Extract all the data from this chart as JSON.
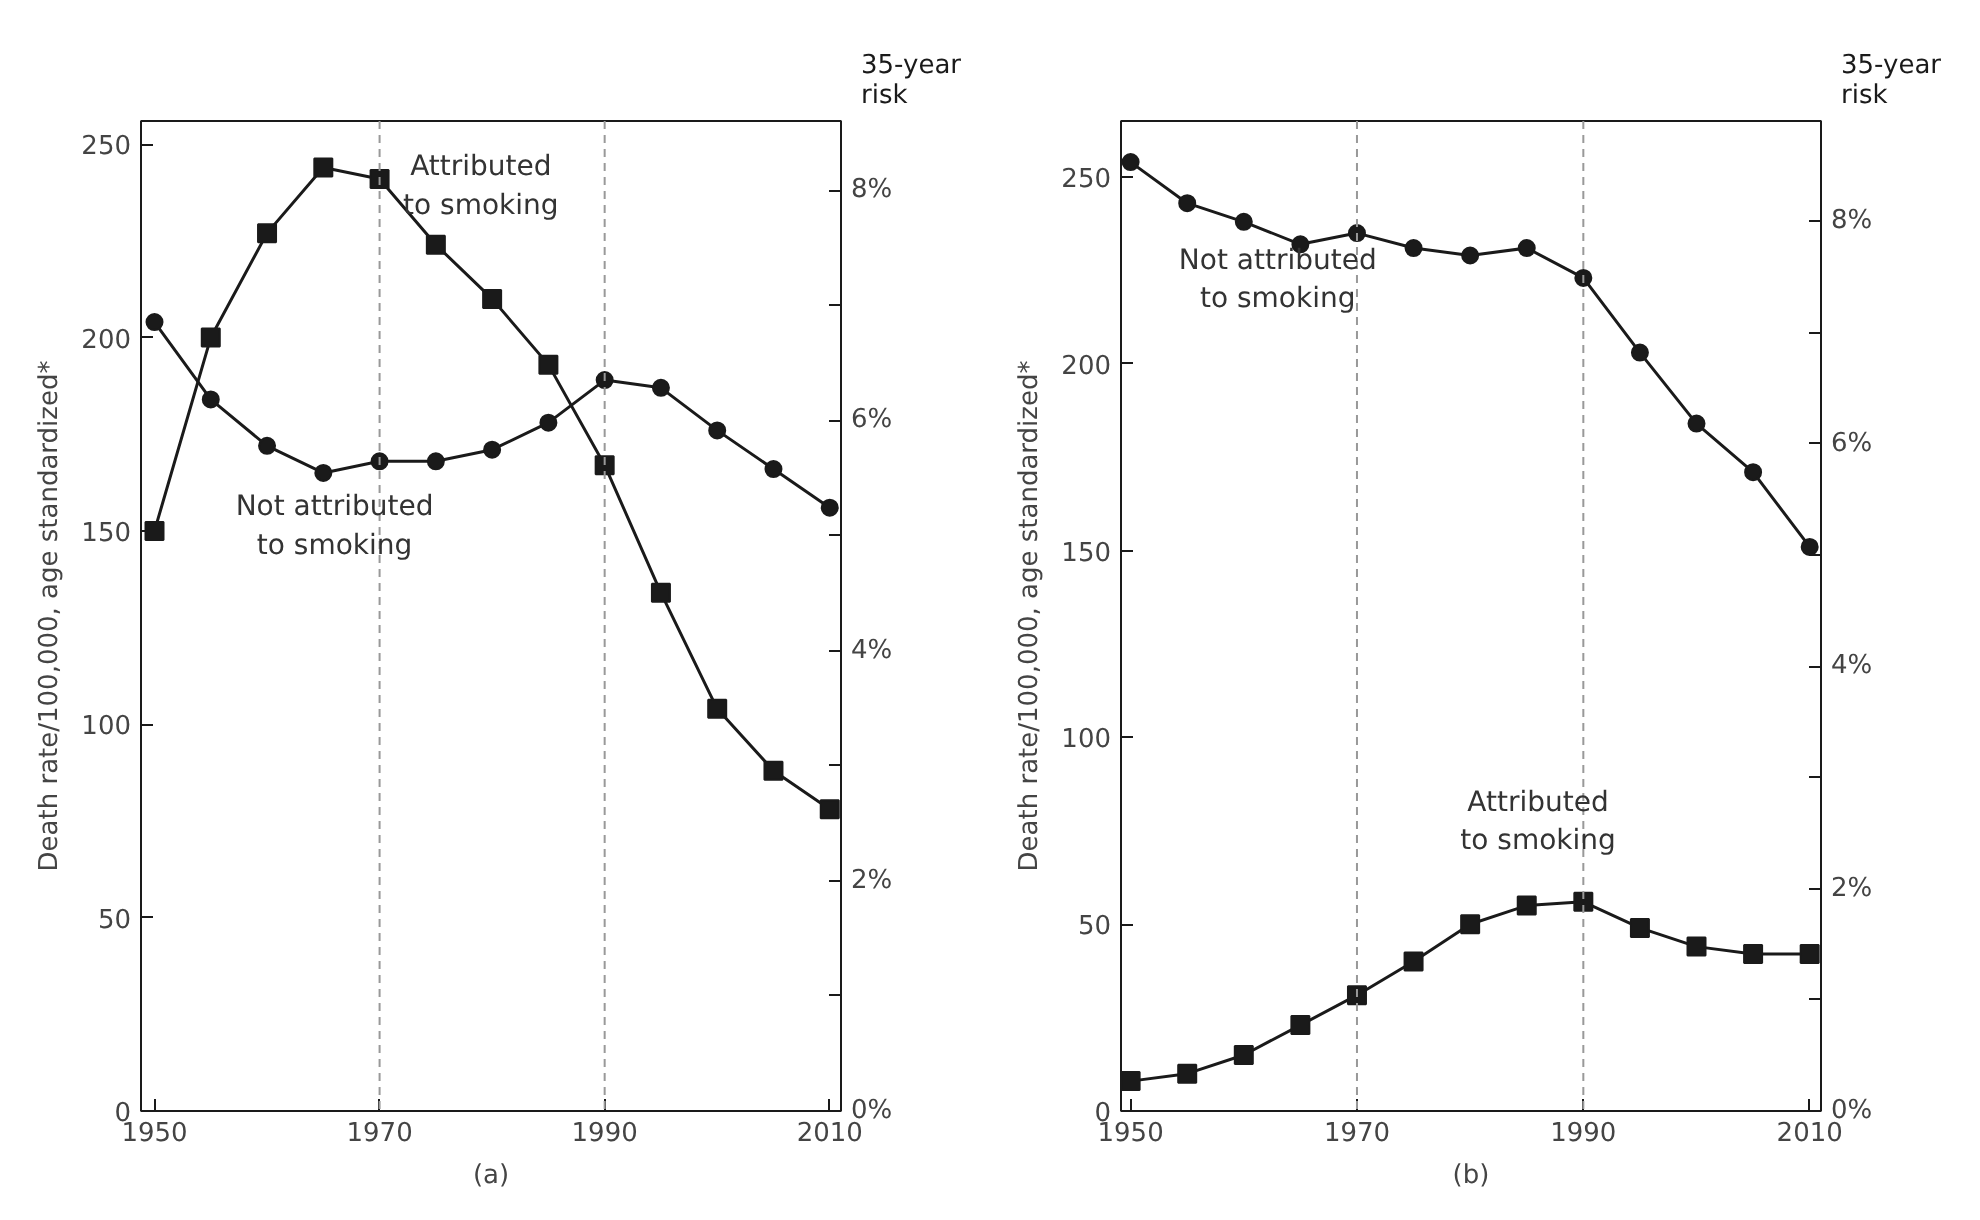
{
  "chart_data": [
    {
      "type": "line",
      "title": "(a)",
      "ylabel": "Death rate/100,000, age standardized*",
      "y2label": "35-year risk",
      "x": [
        1950,
        1955,
        1960,
        1965,
        1970,
        1975,
        1980,
        1985,
        1990,
        1995,
        2000,
        2005,
        2010
      ],
      "series": [
        {
          "name": "Attributed to smoking",
          "color": "#1a1a1a",
          "marker": "square",
          "values": [
            150,
            200,
            227,
            244,
            241,
            224,
            210,
            193,
            167,
            134,
            104,
            88,
            78
          ]
        },
        {
          "name": "Not attributed to smoking",
          "color": "#1a1a1a",
          "marker": "circle",
          "values": [
            204,
            184,
            172,
            165,
            168,
            168,
            171,
            178,
            189,
            187,
            176,
            166,
            156
          ]
        }
      ],
      "xlim": [
        1948.8,
        2011
      ],
      "xticks": [
        1950,
        1970,
        1990,
        2010
      ],
      "ylim": [
        0,
        256
      ],
      "yticks": [
        0,
        50,
        100,
        150,
        200,
        250
      ],
      "y2lim": [
        0,
        8.6
      ],
      "y2ticks": [
        {
          "value": 0,
          "label": "0%"
        },
        {
          "value": 1,
          "label": null
        },
        {
          "value": 2,
          "label": "2%"
        },
        {
          "value": 3,
          "label": null
        },
        {
          "value": 4,
          "label": "4%"
        },
        {
          "value": 5,
          "label": null
        },
        {
          "value": 6,
          "label": "6%"
        },
        {
          "value": 7,
          "label": null
        },
        {
          "value": 8,
          "label": "8%"
        }
      ],
      "ref_lines": [
        {
          "axis": "x",
          "value": 1970,
          "color": "#999999",
          "line_style": "dashed"
        },
        {
          "axis": "x",
          "value": 1990,
          "color": "#999999",
          "line_style": "dashed"
        }
      ],
      "grid": false,
      "line_style": "solid"
    },
    {
      "type": "line",
      "title": "(b)",
      "ylabel": "Death rate/100,000, age standardized*",
      "y2label": "35-year risk",
      "x": [
        1950,
        1955,
        1960,
        1965,
        1970,
        1975,
        1980,
        1985,
        1990,
        1995,
        2000,
        2005,
        2010
      ],
      "series": [
        {
          "name": "Not attributed to smoking",
          "color": "#1a1a1a",
          "marker": "circle",
          "values": [
            254,
            243,
            238,
            232,
            235,
            231,
            229,
            231,
            223,
            203,
            184,
            171,
            151
          ]
        },
        {
          "name": "Attributed to smoking",
          "color": "#1a1a1a",
          "marker": "square",
          "values": [
            8,
            10,
            15,
            23,
            31,
            40,
            50,
            55,
            56,
            49,
            44,
            42,
            42
          ]
        }
      ],
      "xlim": [
        1949.15,
        2011
      ],
      "xticks": [
        1950,
        1970,
        1990,
        2010
      ],
      "ylim": [
        0,
        265
      ],
      "yticks": [
        0,
        50,
        100,
        150,
        200,
        250
      ],
      "y2lim": [
        0,
        8.9
      ],
      "y2ticks": [
        {
          "value": 0,
          "label": "0%"
        },
        {
          "value": 1,
          "label": null
        },
        {
          "value": 2,
          "label": "2%"
        },
        {
          "value": 3,
          "label": null
        },
        {
          "value": 4,
          "label": "4%"
        },
        {
          "value": 5,
          "label": null
        },
        {
          "value": 6,
          "label": "6%"
        },
        {
          "value": 7,
          "label": null
        },
        {
          "value": 8,
          "label": "8%"
        }
      ],
      "ref_lines": [
        {
          "axis": "x",
          "value": 1970,
          "color": "#999999",
          "line_style": "dashed"
        },
        {
          "axis": "x",
          "value": 1990,
          "color": "#999999",
          "line_style": "dashed"
        }
      ],
      "grid": false,
      "line_style": "solid"
    }
  ]
}
